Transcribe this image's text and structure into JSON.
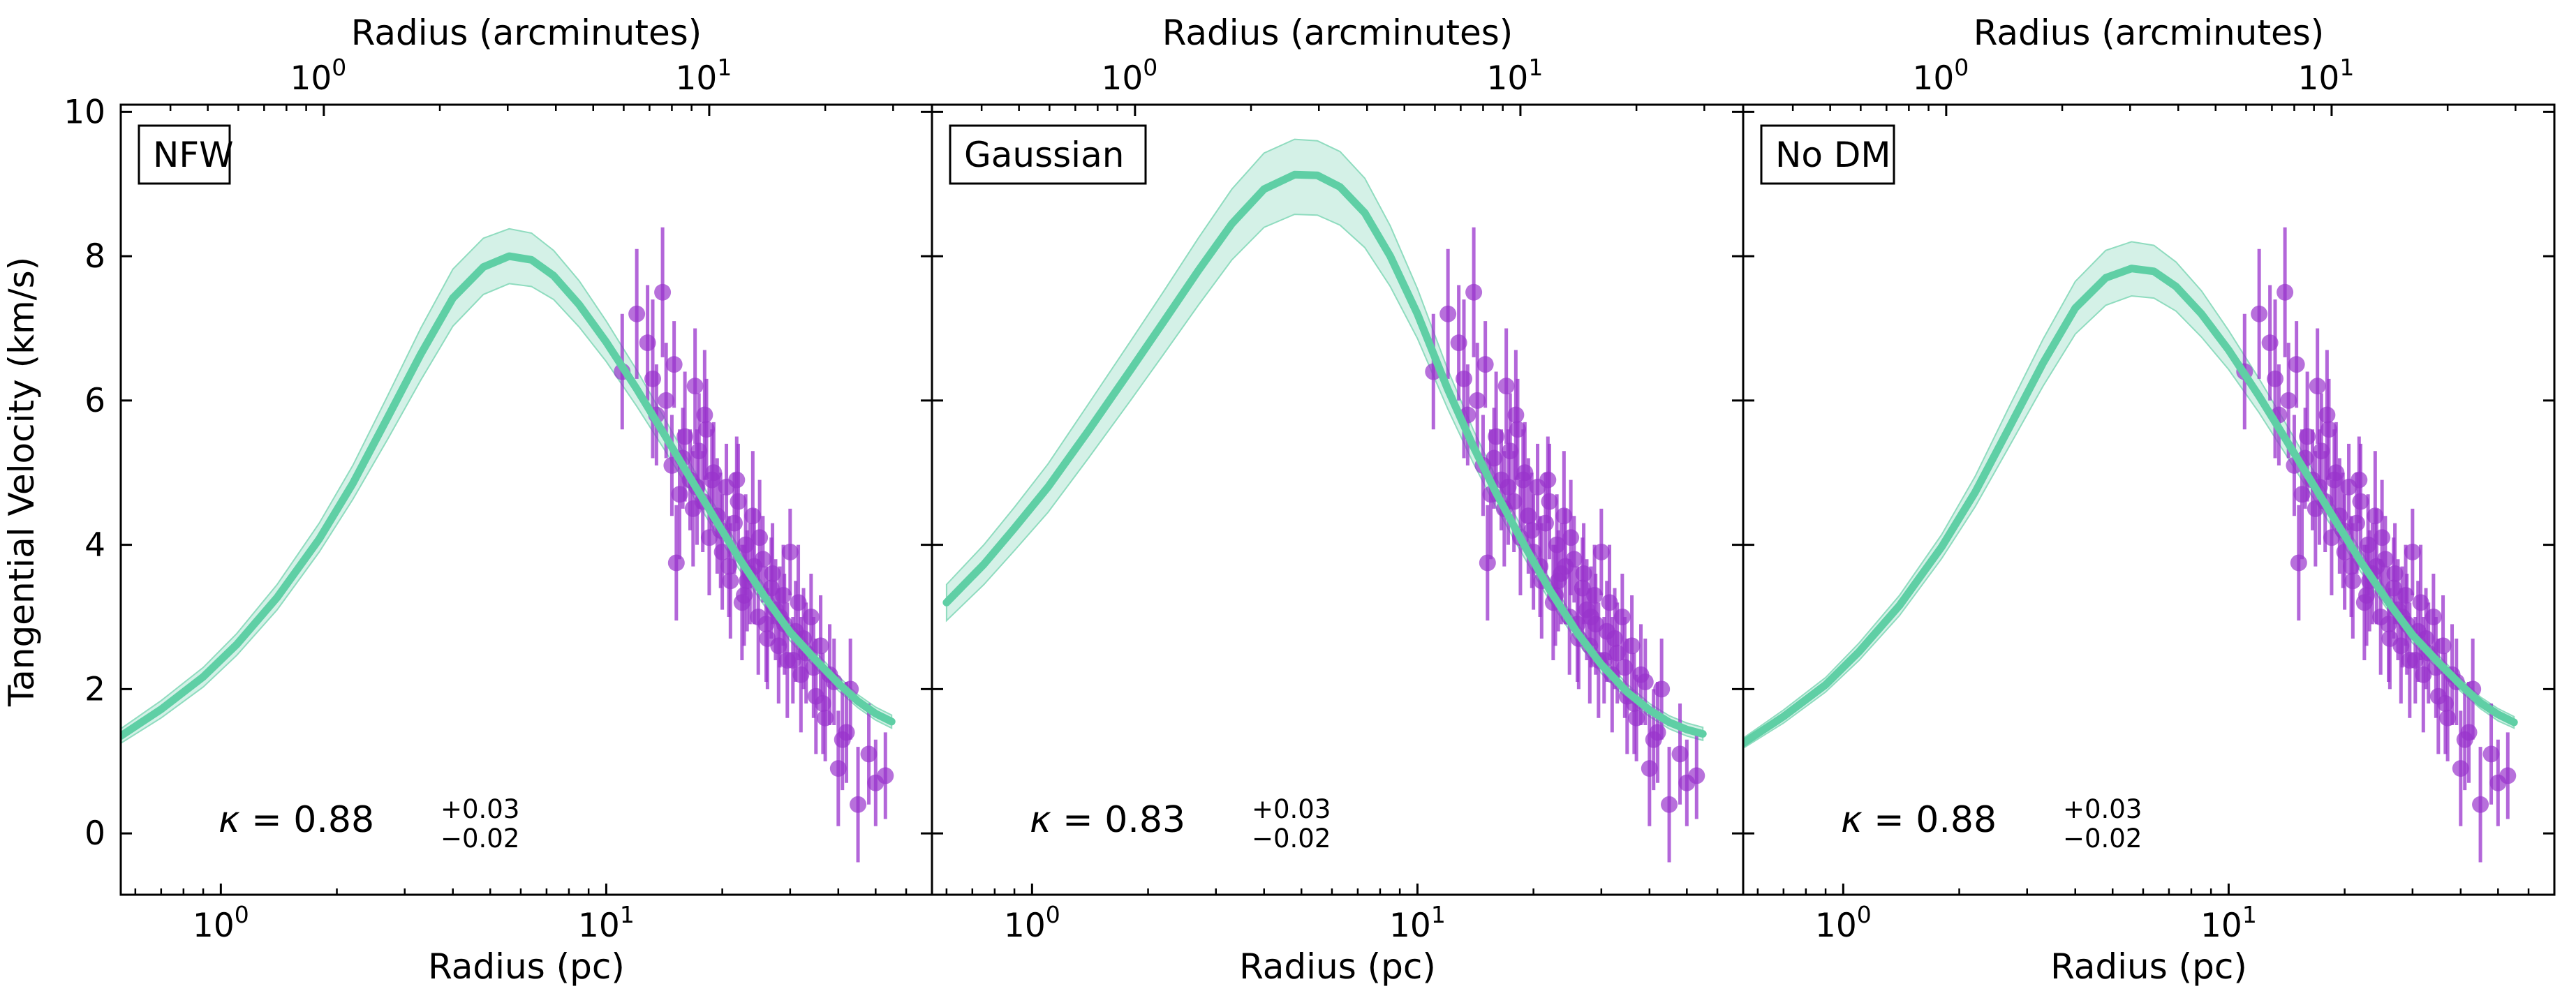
{
  "chart_data": {
    "type": "line",
    "ylabel": "Tangential Velocity (km/s)",
    "xlabel": "Radius (pc)",
    "top_xlabel": "Radius (arcminutes)",
    "xscale": "log",
    "xlim": [
      0.55,
      70
    ],
    "ylim": [
      -0.85,
      10.1
    ],
    "yticks": [
      0,
      2,
      4,
      6,
      8,
      10
    ],
    "ytick_labels": [
      "0",
      "2",
      "4",
      "6",
      "8",
      "10"
    ],
    "xtick_labels": [
      {
        "base": "10",
        "exp": "0"
      },
      {
        "base": "10",
        "exp": "1"
      }
    ],
    "top_xtick_labels": [
      {
        "base": "10",
        "exp": "0"
      },
      {
        "base": "10",
        "exp": "1"
      }
    ],
    "colors": {
      "model": "#5fcfa5",
      "band": "#c6ecdf",
      "band_edge": "#8fdcbf",
      "data": "#9933cc"
    },
    "panels": [
      {
        "label": "NFW",
        "kappa": {
          "symbol": "κ",
          "eq": " = ",
          "value": "0.88",
          "plus": "+0.03",
          "minus": "−0.02"
        },
        "model": {
          "x": [
            0.55,
            0.7,
            0.9,
            1.1,
            1.4,
            1.8,
            2.2,
            2.7,
            3.3,
            4,
            4.8,
            5.6,
            6.4,
            7.3,
            8.5,
            10,
            12,
            14,
            16,
            19,
            22,
            26,
            30,
            35,
            40,
            45,
            50,
            55
          ],
          "y": [
            1.35,
            1.72,
            2.17,
            2.62,
            3.27,
            4.08,
            4.85,
            5.75,
            6.64,
            7.42,
            7.85,
            8.0,
            7.95,
            7.73,
            7.33,
            6.81,
            6.16,
            5.57,
            5.05,
            4.39,
            3.83,
            3.25,
            2.79,
            2.4,
            2.08,
            1.83,
            1.66,
            1.55
          ],
          "lower": [
            1.25,
            1.6,
            2.03,
            2.47,
            3.1,
            3.9,
            4.63,
            5.45,
            6.28,
            7.03,
            7.47,
            7.62,
            7.58,
            7.4,
            7.02,
            6.54,
            5.92,
            5.36,
            4.86,
            4.22,
            3.68,
            3.12,
            2.67,
            2.29,
            1.98,
            1.74,
            1.57,
            1.46
          ],
          "upper": [
            1.45,
            1.84,
            2.3,
            2.77,
            3.45,
            4.3,
            5.1,
            6.05,
            7.0,
            7.82,
            8.25,
            8.38,
            8.32,
            8.08,
            7.66,
            7.1,
            6.42,
            5.8,
            5.25,
            4.57,
            3.98,
            3.39,
            2.92,
            2.51,
            2.18,
            1.92,
            1.75,
            1.64
          ]
        }
      },
      {
        "label": "Gaussian",
        "kappa": {
          "symbol": "κ",
          "eq": " = ",
          "value": "0.83",
          "plus": "+0.03",
          "minus": "−0.02"
        },
        "model": {
          "x": [
            0.6,
            0.75,
            0.9,
            1.1,
            1.4,
            1.8,
            2.2,
            2.7,
            3.3,
            4,
            4.8,
            5.5,
            6.3,
            7.3,
            8.5,
            10,
            12,
            14,
            16,
            19,
            22,
            26,
            30,
            35,
            40,
            45,
            50,
            55
          ],
          "y": [
            3.2,
            3.73,
            4.23,
            4.8,
            5.58,
            6.42,
            7.1,
            7.8,
            8.45,
            8.93,
            9.13,
            9.12,
            8.96,
            8.6,
            8.0,
            7.2,
            6.15,
            5.35,
            4.72,
            3.98,
            3.38,
            2.78,
            2.34,
            1.96,
            1.71,
            1.54,
            1.44,
            1.38
          ],
          "lower": [
            2.95,
            3.45,
            3.92,
            4.45,
            5.2,
            6.0,
            6.65,
            7.32,
            7.95,
            8.4,
            8.58,
            8.57,
            8.43,
            8.12,
            7.58,
            6.86,
            5.88,
            5.12,
            4.52,
            3.81,
            3.23,
            2.65,
            2.22,
            1.86,
            1.62,
            1.45,
            1.35,
            1.29
          ],
          "upper": [
            3.45,
            4.0,
            4.52,
            5.12,
            5.95,
            6.82,
            7.52,
            8.25,
            8.93,
            9.43,
            9.62,
            9.6,
            9.45,
            9.08,
            8.42,
            7.55,
            6.42,
            5.58,
            4.93,
            4.15,
            3.53,
            2.91,
            2.46,
            2.07,
            1.8,
            1.63,
            1.53,
            1.47
          ]
        }
      },
      {
        "label": "No DM",
        "kappa": {
          "symbol": "κ",
          "eq": " = ",
          "value": "0.88",
          "plus": "+0.03",
          "minus": "−0.02"
        },
        "model": {
          "x": [
            0.55,
            0.7,
            0.9,
            1.1,
            1.4,
            1.8,
            2.2,
            2.7,
            3.3,
            4,
            4.8,
            5.6,
            6.4,
            7.3,
            8.5,
            10,
            12,
            14,
            16,
            19,
            22,
            26,
            30,
            35,
            40,
            45,
            50,
            55
          ],
          "y": [
            1.25,
            1.62,
            2.06,
            2.52,
            3.16,
            3.97,
            4.73,
            5.63,
            6.52,
            7.28,
            7.7,
            7.83,
            7.79,
            7.58,
            7.2,
            6.7,
            6.06,
            5.48,
            4.97,
            4.32,
            3.77,
            3.2,
            2.75,
            2.37,
            2.06,
            1.81,
            1.65,
            1.54
          ],
          "lower": [
            1.18,
            1.53,
            1.96,
            2.4,
            3.02,
            3.81,
            4.53,
            5.37,
            6.2,
            6.92,
            7.32,
            7.45,
            7.42,
            7.24,
            6.88,
            6.43,
            5.83,
            5.27,
            4.78,
            4.16,
            3.63,
            3.08,
            2.64,
            2.27,
            1.97,
            1.73,
            1.56,
            1.46
          ],
          "upper": [
            1.32,
            1.71,
            2.16,
            2.64,
            3.3,
            4.14,
            4.95,
            5.92,
            6.85,
            7.65,
            8.08,
            8.2,
            8.15,
            7.92,
            7.52,
            6.97,
            6.3,
            5.7,
            5.17,
            4.49,
            3.92,
            3.33,
            2.87,
            2.47,
            2.15,
            1.89,
            1.73,
            1.62
          ]
        }
      }
    ],
    "observations": {
      "x": [
        11,
        12,
        12.8,
        13.5,
        13.2,
        14,
        14.3,
        14.8,
        15,
        15.5,
        15.2,
        16,
        16.5,
        17,
        17.4,
        17.8,
        18,
        18.5,
        19,
        19.4,
        20,
        20.5,
        21,
        21.5,
        22,
        22.5,
        23,
        23.6,
        24,
        24.8,
        25.5,
        26,
        26.8,
        27.5,
        28,
        28.8,
        29.5,
        30,
        31,
        32,
        33,
        34,
        35,
        36,
        37,
        38,
        40,
        41,
        43,
        45,
        48,
        50,
        53,
        15.8,
        16.8,
        18.2,
        19.8,
        20.8,
        21.8,
        23.2,
        25,
        27,
        29,
        31.5,
        34.5,
        36.5,
        39,
        42,
        17.2,
        18.8,
        22.8,
        24.2,
        26.2,
        28.2,
        30.5,
        32.5
      ],
      "y": [
        6.4,
        7.2,
        6.8,
        5.8,
        6.3,
        7.5,
        6.0,
        5.1,
        6.5,
        4.7,
        3.75,
        5.5,
        4.9,
        6.2,
        5.3,
        4.6,
        5.8,
        4.1,
        5.0,
        4.4,
        3.9,
        4.8,
        3.5,
        4.3,
        4.6,
        3.2,
        4.0,
        3.6,
        4.4,
        3.0,
        3.8,
        2.9,
        3.4,
        3.1,
        2.6,
        3.3,
        2.4,
        3.9,
        2.8,
        2.2,
        2.5,
        3.0,
        1.9,
        2.6,
        1.6,
        2.2,
        0.9,
        1.3,
        2.0,
        0.4,
        1.1,
        0.7,
        0.8,
        5.2,
        4.5,
        5.6,
        4.2,
        3.7,
        4.9,
        3.5,
        4.1,
        3.6,
        2.9,
        3.2,
        2.3,
        1.8,
        2.1,
        1.4,
        4.8,
        4.9,
        3.3,
        3.7,
        2.7,
        3.0,
        2.4,
        2.7
      ],
      "err": [
        0.8,
        0.9,
        0.8,
        0.7,
        1.1,
        0.9,
        0.8,
        0.7,
        0.6,
        0.9,
        0.8,
        0.9,
        0.7,
        0.8,
        0.8,
        0.7,
        0.9,
        0.8,
        0.7,
        0.8,
        0.8,
        0.6,
        0.8,
        0.7,
        0.8,
        0.8,
        0.7,
        0.7,
        0.9,
        0.8,
        0.6,
        0.8,
        0.7,
        0.7,
        0.8,
        0.7,
        0.8,
        0.6,
        0.7,
        0.8,
        0.7,
        0.6,
        0.8,
        0.7,
        0.6,
        0.7,
        0.8,
        0.7,
        0.7,
        0.8,
        0.7,
        0.6,
        0.6,
        0.7,
        0.8,
        0.7,
        0.8,
        0.7,
        0.6,
        0.7,
        0.8,
        0.7,
        0.7,
        0.8,
        0.7,
        0.7,
        0.6,
        0.7,
        0.8,
        0.7,
        0.7,
        0.8,
        0.7,
        0.7,
        0.6,
        0.7
      ]
    }
  }
}
